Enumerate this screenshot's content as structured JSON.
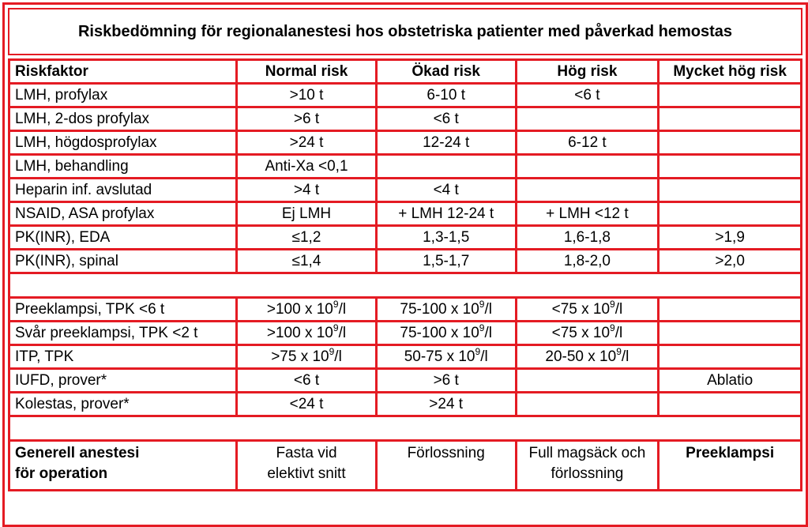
{
  "title": "Riskbedömning för regionalanestesi hos obstetriska patienter med påverkad hemostas",
  "headers": [
    "Riskfaktor",
    "Normal risk",
    "Ökad risk",
    "Hög risk",
    "Mycket hög risk"
  ],
  "rows_a": [
    [
      "LMH, profylax",
      ">10 t",
      "6-10 t",
      "<6 t",
      ""
    ],
    [
      "LMH, 2-dos profylax",
      ">6 t",
      "<6 t",
      "",
      ""
    ],
    [
      "LMH, högdosprofylax",
      ">24 t",
      "12-24 t",
      "6-12 t",
      ""
    ],
    [
      "LMH, behandling",
      "Anti-Xa <0,1",
      "",
      "",
      ""
    ],
    [
      "Heparin inf. avslutad",
      ">4 t",
      "<4 t",
      "",
      ""
    ],
    [
      "NSAID, ASA profylax",
      "Ej LMH",
      "+ LMH 12-24 t",
      "+ LMH <12 t",
      ""
    ],
    [
      "PK(INR), EDA",
      "≤1,2",
      "1,3-1,5",
      "1,6-1,8",
      ">1,9"
    ],
    [
      "PK(INR), spinal",
      "≤1,4",
      "1,5-1,7",
      "1,8-2,0",
      ">2,0"
    ]
  ],
  "rows_b": [
    {
      "label": "Preeklampsi, TPK <6 t",
      "cells": [
        [
          ">100 x 10",
          "9",
          "/l"
        ],
        [
          "75-100 x 10",
          "9",
          "/l"
        ],
        [
          "<75 x 10",
          "9",
          "/l"
        ],
        [
          "",
          "",
          ""
        ]
      ]
    },
    {
      "label": "Svår preeklampsi, TPK <2 t",
      "cells": [
        [
          ">100 x 10",
          "9",
          "/l"
        ],
        [
          "75-100 x 10",
          "9",
          "/l"
        ],
        [
          "<75 x 10",
          "9",
          "/l"
        ],
        [
          "",
          "",
          ""
        ]
      ]
    },
    {
      "label": "ITP, TPK",
      "cells": [
        [
          ">75 x 10",
          "9",
          "/l"
        ],
        [
          "50-75 x 10",
          "9",
          "/l"
        ],
        [
          "20-50 x 10",
          "9",
          "/l"
        ],
        [
          "",
          "",
          ""
        ]
      ]
    }
  ],
  "rows_c": [
    [
      "IUFD, prover*",
      "<6 t",
      ">6 t",
      "",
      "Ablatio"
    ],
    [
      "Kolestas, prover*",
      "<24 t",
      ">24 t",
      "",
      ""
    ]
  ],
  "footer": {
    "label_line1": "Generell anestesi",
    "label_line2": "för operation",
    "normal_line1": "Fasta vid",
    "normal_line2": "elektivt snitt",
    "okad": "Förlossning",
    "hog_line1": "Full magsäck och",
    "hog_line2": "förlossning",
    "mycket": "Preeklampsi"
  },
  "colors": {
    "border": "#e41b23",
    "text": "#000000",
    "background": "#ffffff"
  }
}
